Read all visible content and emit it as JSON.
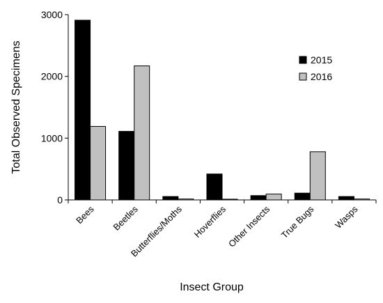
{
  "chart_data": {
    "type": "bar",
    "title": "",
    "xlabel": "Insect Group",
    "ylabel": "Total Observed Specimens",
    "ylim": [
      0,
      3000
    ],
    "yticks": [
      0,
      1000,
      2000,
      3000
    ],
    "grid": false,
    "legend_position": "top-right",
    "categories": [
      "Bees",
      "Beetles",
      "Butterflies/Moths",
      "Hoverflies",
      "Other Insects",
      "True Bugs",
      "Wasps"
    ],
    "series": [
      {
        "name": "2015",
        "color": "#000000",
        "values": [
          2910,
          1110,
          55,
          420,
          70,
          110,
          55
        ]
      },
      {
        "name": "2016",
        "color": "#c0c0c0",
        "values": [
          1190,
          2170,
          15,
          12,
          95,
          780,
          15
        ]
      }
    ]
  }
}
